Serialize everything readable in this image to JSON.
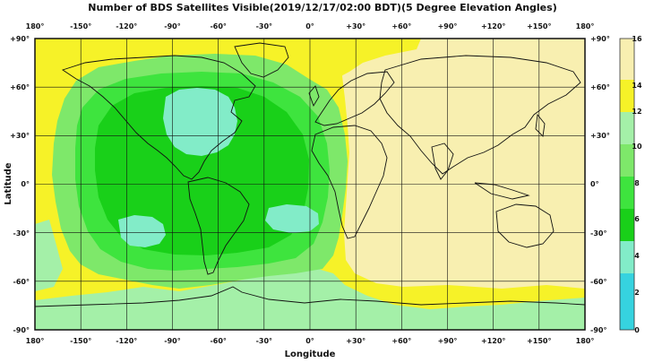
{
  "title": "Number of BDS Satellites Visible(2019/12/17/02:00 BDT)(5 Degree Elevation Angles)",
  "x_axis": {
    "label": "Longitude",
    "ticks": [
      "180°",
      "-150°",
      "-120°",
      "-90°",
      "-60°",
      "-30°",
      "0°",
      "+30°",
      "+60°",
      "+90°",
      "+120°",
      "+150°",
      "180°"
    ]
  },
  "y_axis": {
    "label": "Latitude",
    "ticks": [
      "+90°",
      "+60°",
      "+30°",
      "0°",
      "-30°",
      "-60°",
      "-90°"
    ]
  },
  "colorbar": {
    "ticks": [
      "16",
      "14",
      "12",
      "10",
      "8",
      "6",
      "4",
      "2",
      "0"
    ],
    "bands": [
      {
        "from": 0,
        "to": 2,
        "color": "#36d3df"
      },
      {
        "from": 2,
        "to": 4,
        "color": "#52e0e8"
      },
      {
        "from": 4,
        "to": 6,
        "color": "#82ecc8"
      },
      {
        "from": 6,
        "to": 8,
        "color": "#19d019"
      },
      {
        "from": 8,
        "to": 10,
        "color": "#3ee43e"
      },
      {
        "from": 10,
        "to": 12,
        "color": "#7ee86a"
      },
      {
        "from": 12,
        "to": 14,
        "color": "#a4f0a8"
      },
      {
        "from": 14,
        "to": 16,
        "color": "#f6f228"
      },
      {
        "from": 16,
        "to": 17,
        "color": "#f8efb0"
      }
    ]
  },
  "grid": true,
  "visibility_regions": {
    "east_hemisphere_main": 16,
    "north_pole_band": 14,
    "south_pole_band": 12,
    "pacific_atlantic_core": 8,
    "north_america_center": 6,
    "south_pacific_patch": 6,
    "south_atlantic_patch": 6
  }
}
